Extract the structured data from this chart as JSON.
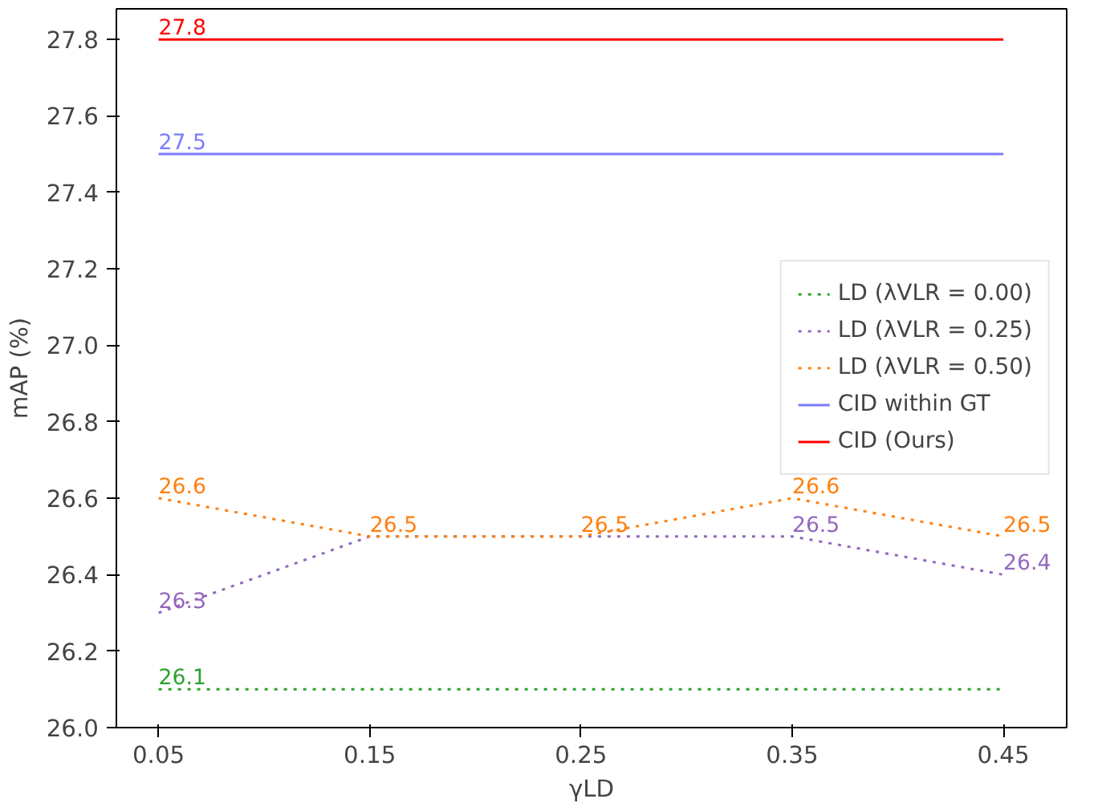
{
  "chart_data": {
    "type": "line",
    "xlabel": "γLD",
    "ylabel": "mAP (%)",
    "x": [
      0.05,
      0.15,
      0.25,
      0.35,
      0.45
    ],
    "xlim": [
      0.03,
      0.48
    ],
    "xticks": [
      {
        "value": 0.05,
        "label": "0.05"
      },
      {
        "value": 0.15,
        "label": "0.15"
      },
      {
        "value": 0.25,
        "label": "0.25"
      },
      {
        "value": 0.35,
        "label": "0.35"
      },
      {
        "value": 0.45,
        "label": "0.45"
      }
    ],
    "ylim": [
      26.0,
      27.88
    ],
    "yticks": [
      {
        "value": 26.0,
        "label": "26.0"
      },
      {
        "value": 26.2,
        "label": "26.2"
      },
      {
        "value": 26.4,
        "label": "26.4"
      },
      {
        "value": 26.6,
        "label": "26.6"
      },
      {
        "value": 26.8,
        "label": "26.8"
      },
      {
        "value": 27.0,
        "label": "27.0"
      },
      {
        "value": 27.2,
        "label": "27.2"
      },
      {
        "value": 27.4,
        "label": "27.4"
      },
      {
        "value": 27.6,
        "label": "27.6"
      },
      {
        "value": 27.8,
        "label": "27.8"
      }
    ],
    "grid": false,
    "legend": "right",
    "marker": "none",
    "series": [
      {
        "name": "LD (λVLR = 0.00)",
        "color": "#2ca02c",
        "line_style": "dotted",
        "values": [
          26.1,
          26.1,
          26.1,
          26.1,
          26.1
        ],
        "value_labels": [
          "26.1",
          null,
          null,
          null,
          null
        ]
      },
      {
        "name": "LD (λVLR = 0.25)",
        "color": "#9467bd",
        "line_style": "dotted",
        "values": [
          26.3,
          26.5,
          26.5,
          26.5,
          26.4
        ],
        "value_labels": [
          "26.3",
          null,
          null,
          "26.5",
          "26.4"
        ]
      },
      {
        "name": "LD (λVLR = 0.50)",
        "color": "#ff7f0e",
        "line_style": "dotted",
        "values": [
          26.6,
          26.5,
          26.5,
          26.6,
          26.5
        ],
        "value_labels": [
          "26.6",
          "26.5",
          "26.5",
          "26.6",
          "26.5"
        ]
      },
      {
        "name": "CID within GT",
        "color": "#7b7bff",
        "line_style": "solid",
        "values": [
          27.5,
          27.5,
          27.5,
          27.5,
          27.5
        ],
        "value_labels": [
          "27.5",
          null,
          null,
          null,
          null
        ]
      },
      {
        "name": "CID (Ours)",
        "color": "#ff0000",
        "line_style": "solid",
        "values": [
          27.8,
          27.8,
          27.8,
          27.8,
          27.8
        ],
        "value_labels": [
          "27.8",
          null,
          null,
          null,
          null
        ]
      }
    ]
  }
}
